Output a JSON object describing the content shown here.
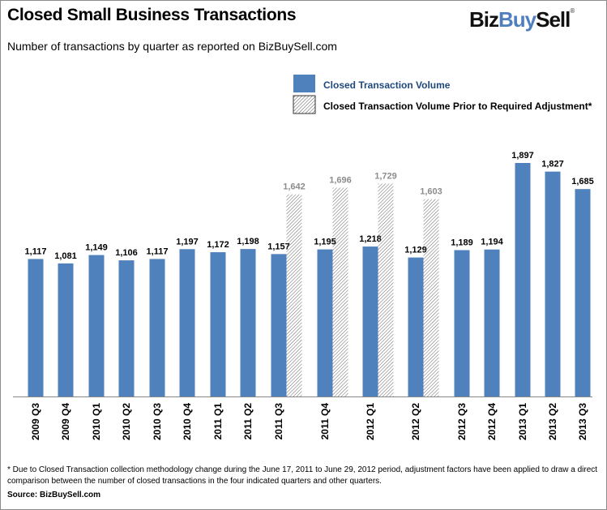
{
  "header": {
    "title": "Closed Small Business Transactions",
    "subtitle": "Number of transactions by quarter as reported on BizBuySell.com",
    "logo": {
      "part1": "Biz",
      "part2": "Buy",
      "part3": "Sell",
      "mark": "®"
    }
  },
  "footnote": "* Due to Closed Transaction collection methodology change during the June 17, 2011 to June 29, 2012 period, adjustment factors have been applied to draw a direct comparison between the number of closed transactions in the four indicated quarters and other quarters.",
  "source": "Source: BizBuySell.com",
  "colors": {
    "blue": "#4f81bd",
    "hatch_label": "#8c8c8c",
    "legend_text": "#1f497d"
  },
  "chart_data": {
    "type": "bar",
    "title": "Closed Small Business Transactions",
    "categories": [
      "2009 Q3",
      "2009 Q4",
      "2010 Q1",
      "2010 Q2",
      "2010 Q3",
      "2010 Q4",
      "2011 Q1",
      "2011 Q2",
      "2011 Q3",
      "2011 Q4",
      "2012 Q1",
      "2012 Q2",
      "2012 Q3",
      "2012 Q4",
      "2013 Q1",
      "2013 Q2",
      "2013 Q3"
    ],
    "series": [
      {
        "name": "Closed Transaction Volume",
        "pattern": "solid",
        "values": [
          1117,
          1081,
          1149,
          1106,
          1117,
          1197,
          1172,
          1198,
          1157,
          1195,
          1218,
          1129,
          1189,
          1194,
          1897,
          1827,
          1685
        ],
        "labels": [
          "1,117",
          "1,081",
          "1,149",
          "1,106",
          "1,117",
          "1,197",
          "1,172",
          "1,198",
          "1,157",
          "1,195",
          "1,218",
          "1,129",
          "1,189",
          "1,194",
          "1,897",
          "1,827",
          "1,685"
        ]
      },
      {
        "name": "Closed Transaction Volume Prior to Required Adjustment*",
        "pattern": "hatched",
        "values": [
          null,
          null,
          null,
          null,
          null,
          null,
          null,
          null,
          1642,
          1696,
          1729,
          1603,
          null,
          null,
          null,
          null,
          null
        ],
        "labels": [
          null,
          null,
          null,
          null,
          null,
          null,
          null,
          null,
          "1,642",
          "1,696",
          "1,729",
          "1,603",
          null,
          null,
          null,
          null,
          null
        ]
      }
    ],
    "ylim": [
      0,
      2000
    ],
    "grid": false,
    "y_axis_shown": false,
    "legend_position": "top-right"
  }
}
